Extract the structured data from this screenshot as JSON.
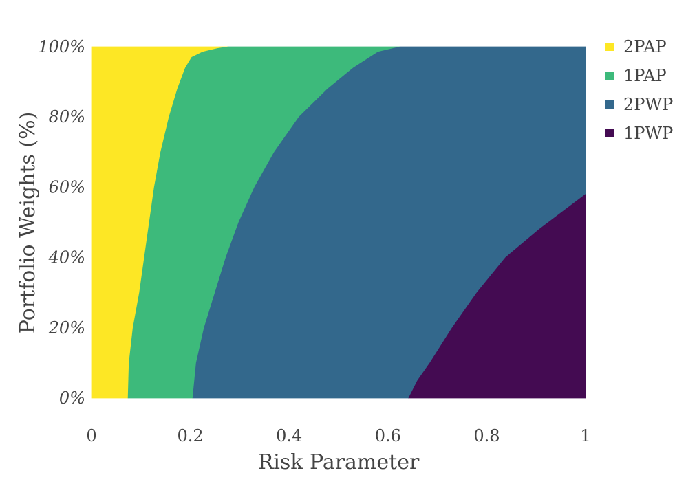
{
  "chart_data": {
    "type": "area",
    "title": "",
    "xlabel": "Risk Parameter",
    "ylabel": "Portfolio Weights (%)",
    "xlim": [
      0,
      1
    ],
    "ylim": [
      0,
      100
    ],
    "x_ticks": [
      0,
      0.2,
      0.4,
      0.6,
      0.8,
      1
    ],
    "x_tick_labels": [
      "0",
      "0.2",
      "0.4",
      "0.6",
      "0.8",
      "1"
    ],
    "y_ticks": [
      0,
      20,
      40,
      60,
      80,
      100
    ],
    "y_tick_labels": [
      "0%",
      "20%",
      "40%",
      "60%",
      "80%",
      "100%"
    ],
    "grid": false,
    "legend_position": "top-right",
    "legend": [
      {
        "name": "2PAP",
        "color": "#fde725"
      },
      {
        "name": "1PAP",
        "color": "#3dba7b"
      },
      {
        "name": "2PWP",
        "color": "#33688c"
      },
      {
        "name": "1PWP",
        "color": "#440b52"
      }
    ],
    "regions_note": "Region layering from left to right: 2PAP, 1PAP, 2PWP, 1PWP. Each boundary lists [risk parameter, portfolio weight %] points.",
    "boundaries": [
      {
        "between": [
          "2PAP",
          "1PAP"
        ],
        "points": [
          [
            0.074,
            0
          ],
          [
            0.076,
            10
          ],
          [
            0.084,
            20
          ],
          [
            0.097,
            30
          ],
          [
            0.107,
            40
          ],
          [
            0.117,
            50
          ],
          [
            0.127,
            60
          ],
          [
            0.14,
            70
          ],
          [
            0.157,
            80
          ],
          [
            0.174,
            88
          ],
          [
            0.19,
            94
          ],
          [
            0.203,
            97
          ],
          [
            0.225,
            98.5
          ],
          [
            0.255,
            99.5
          ],
          [
            0.277,
            100
          ]
        ]
      },
      {
        "between": [
          "1PAP",
          "2PWP"
        ],
        "points": [
          [
            0.205,
            0
          ],
          [
            0.212,
            10
          ],
          [
            0.228,
            20
          ],
          [
            0.25,
            30
          ],
          [
            0.272,
            40
          ],
          [
            0.298,
            50
          ],
          [
            0.33,
            60
          ],
          [
            0.37,
            70
          ],
          [
            0.42,
            80
          ],
          [
            0.478,
            88
          ],
          [
            0.53,
            94
          ],
          [
            0.58,
            98.5
          ],
          [
            0.625,
            100
          ]
        ]
      },
      {
        "between": [
          "2PWP",
          "1PWP"
        ],
        "points": [
          [
            0.642,
            0
          ],
          [
            0.66,
            5
          ],
          [
            0.685,
            10
          ],
          [
            0.73,
            20
          ],
          [
            0.78,
            30
          ],
          [
            0.838,
            40
          ],
          [
            0.906,
            48
          ],
          [
            1.0,
            58
          ]
        ]
      }
    ]
  }
}
